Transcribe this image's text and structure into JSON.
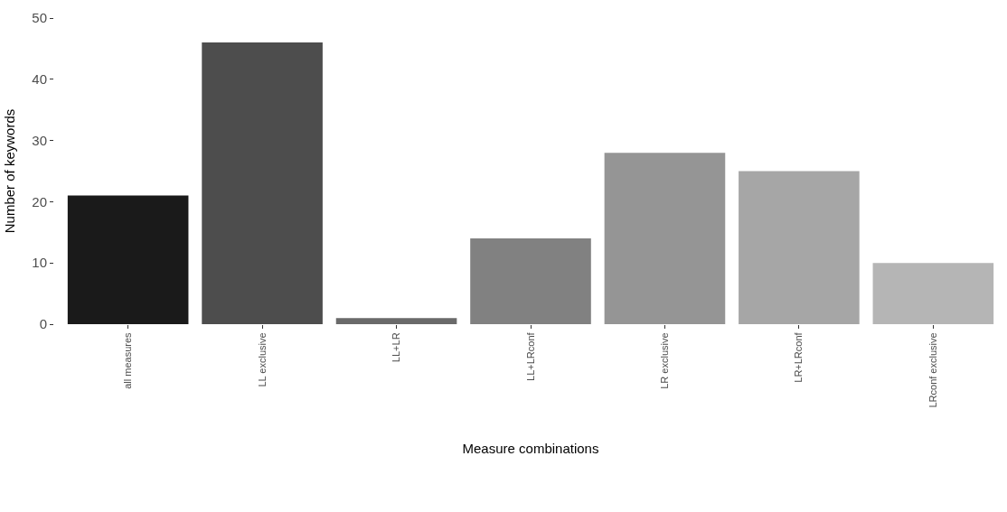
{
  "chart_data": {
    "type": "bar",
    "xlabel": "Measure combinations",
    "ylabel": "Number of keywords",
    "categories": [
      "all measures",
      "LL exclusive",
      "LL+LR",
      "LL+LRconf",
      "LR exclusive",
      "LR+LRconf",
      "LRconf exclusive"
    ],
    "values": [
      21,
      46,
      1,
      14,
      28,
      25,
      10
    ],
    "colors": [
      "#1a1a1a",
      "#4d4d4d",
      "#6a6a6a",
      "#818181",
      "#959595",
      "#a6a6a6",
      "#b5b5b5"
    ],
    "ylim": [
      0,
      50
    ],
    "yticks": [
      0,
      10,
      20,
      30,
      40,
      50
    ],
    "legend": false
  }
}
